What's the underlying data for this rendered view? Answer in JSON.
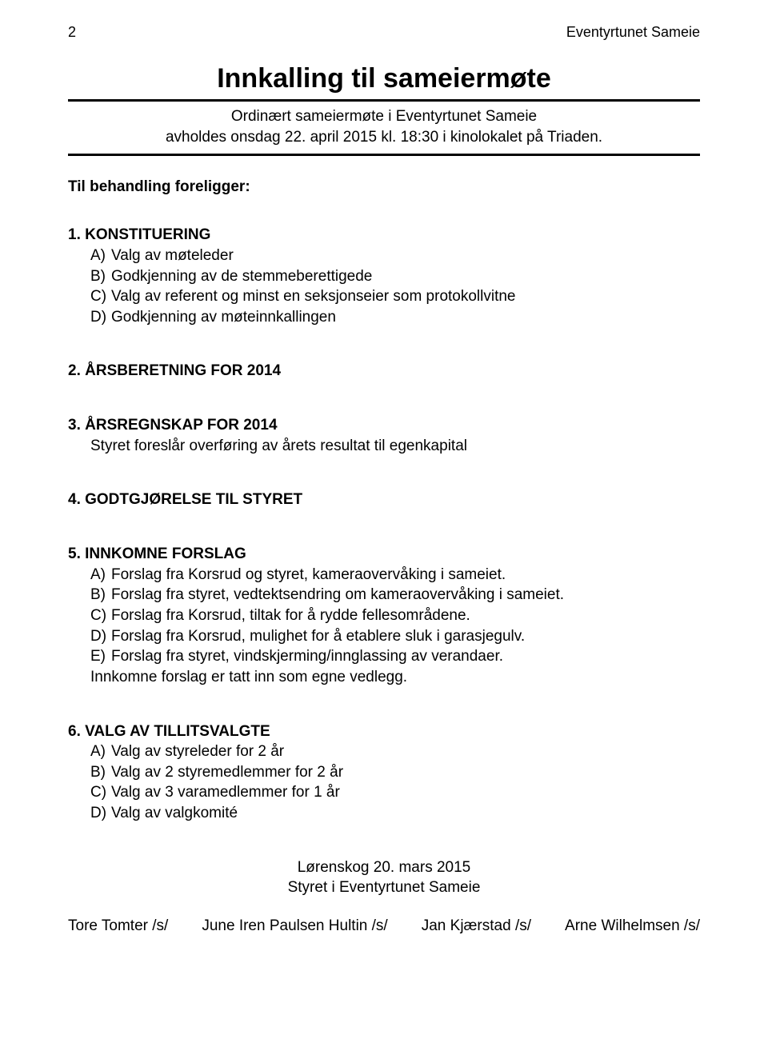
{
  "header": {
    "page_number": "2",
    "org_name": "Eventyrtunet Sameie"
  },
  "title": "Innkalling til sameiermøte",
  "subtitle": {
    "line1": "Ordinært sameiermøte i Eventyrtunet Sameie",
    "line2": "avholdes onsdag 22. april 2015 kl. 18:30 i kinolokalet på Triaden."
  },
  "intro": "Til behandling foreligger:",
  "sections": {
    "s1": {
      "head": "1. KONSTITUERING",
      "a": "Valg av møteleder",
      "b": "Godkjenning av de stemmeberettigede",
      "c": "Valg av referent og minst en seksjonseier som protokollvitne",
      "d": "Godkjenning av møteinnkallingen"
    },
    "s2": {
      "head": "2. ÅRSBERETNING FOR 2014"
    },
    "s3": {
      "head": "3. ÅRSREGNSKAP FOR 2014",
      "body": "Styret foreslår overføring av årets resultat til egenkapital"
    },
    "s4": {
      "head": "4. GODTGJØRELSE TIL STYRET"
    },
    "s5": {
      "head": "5. INNKOMNE FORSLAG",
      "a": "Forslag fra Korsrud og styret, kameraovervåking i sameiet.",
      "b": "Forslag fra styret, vedtektsendring om kameraovervåking i sameiet.",
      "c": "Forslag fra Korsrud, tiltak for å rydde fellesområdene.",
      "d": "Forslag fra Korsrud, mulighet for å etablere sluk i garasjegulv.",
      "e": "Forslag fra styret, vindskjerming/innglassing av verandaer.",
      "tail": "Innkomne forslag er tatt inn som egne vedlegg."
    },
    "s6": {
      "head": "6. VALG AV TILLITSVALGTE",
      "a": "Valg av styreleder for 2 år",
      "b": "Valg av 2 styremedlemmer for 2 år",
      "c": "Valg av 3 varamedlemmer for 1 år",
      "d": "Valg av valgkomité"
    }
  },
  "closing": {
    "line1": "Lørenskog 20. mars 2015",
    "line2": "Styret i Eventyrtunet Sameie"
  },
  "signatures": {
    "s1": "Tore Tomter /s/",
    "s2": "June Iren Paulsen Hultin /s/",
    "s3": "Jan Kjærstad /s/",
    "s4": "Arne Wilhelmsen /s/"
  }
}
